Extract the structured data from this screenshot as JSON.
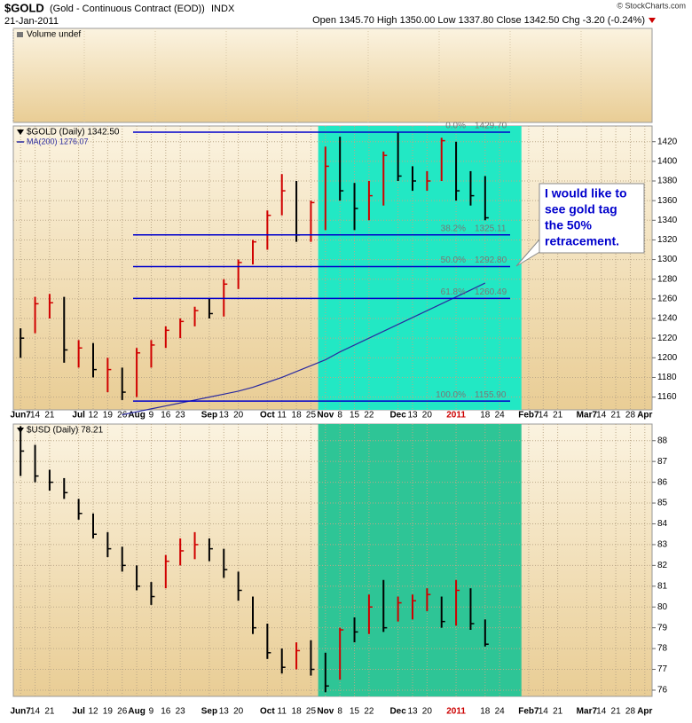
{
  "header": {
    "symbol": "$GOLD",
    "name": "(Gold - Continuous Contract (EOD))",
    "exchange": "INDX",
    "date": "21-Jan-2011",
    "quote": "Open 1345.70 High 1350.00 Low 1337.80 Close 1342.50 Chg -3.20 (-0.24%)",
    "credit": "© StockCharts.com"
  },
  "chart_data": [
    {
      "type": "volume",
      "label": "Volume undef"
    },
    {
      "type": "ohlc",
      "grid": true,
      "categories": [
        "Jun7",
        "14",
        "21",
        null,
        "Jul",
        "12",
        "19",
        "26",
        "Aug",
        "9",
        "16",
        "23",
        null,
        "Sep",
        "13",
        "20",
        null,
        "Oct",
        "11",
        "18",
        "25",
        "Nov",
        "8",
        "15",
        "22",
        null,
        "Dec",
        "13",
        "20",
        null,
        "2011",
        null,
        "18",
        "24",
        null,
        "Feb7",
        "14",
        "21",
        null,
        "Mar7",
        "14",
        "21",
        "28",
        "Apr"
      ],
      "ylim": [
        1147,
        1436
      ],
      "yticks": [
        1160,
        1180,
        1200,
        1220,
        1240,
        1260,
        1280,
        1300,
        1320,
        1340,
        1360,
        1380,
        1400,
        1420
      ],
      "highlight": {
        "from": "Nov",
        "to": "Feb7",
        "color": "#22e8c4"
      },
      "series": [
        {
          "name": "$GOLD (Daily) 1342.50",
          "color": "#000000",
          "up_color": "#d00000",
          "high": [
            1230,
            1262,
            1265,
            1262,
            1218,
            1215,
            1200,
            1190,
            1210,
            1218,
            1232,
            1240,
            1252,
            1260,
            1280,
            1300,
            1320,
            1350,
            1387,
            1380,
            1360,
            1415,
            1425,
            1378,
            1380,
            1410,
            1430,
            1395,
            1390,
            1424,
            1420,
            1390,
            1385,
            null,
            null,
            null,
            null,
            null,
            null,
            null,
            null,
            null,
            null,
            null
          ],
          "low": [
            1200,
            1225,
            1240,
            1195,
            1190,
            1180,
            1165,
            1157,
            1160,
            1190,
            1210,
            1220,
            1232,
            1240,
            1242,
            1270,
            1295,
            1310,
            1345,
            1318,
            1318,
            1330,
            1360,
            1330,
            1340,
            1355,
            1380,
            1370,
            1370,
            1380,
            1360,
            1355,
            1340,
            null,
            null,
            null,
            null,
            null,
            null,
            null,
            null,
            null,
            null,
            null
          ],
          "close": [
            1220,
            1255,
            1256,
            1208,
            1210,
            1188,
            1188,
            1165,
            1205,
            1213,
            1228,
            1237,
            1248,
            1245,
            1275,
            1297,
            1318,
            1345,
            1370,
            1325,
            1358,
            1395,
            1370,
            1352,
            1365,
            1406,
            1385,
            1380,
            1380,
            1421,
            1370,
            1365,
            1342.5,
            null,
            null,
            null,
            null,
            null,
            null,
            null,
            null,
            null,
            null,
            null
          ]
        },
        {
          "name": "MA(200) 1276.07",
          "color": "#2a2aa0",
          "values": [
            null,
            null,
            null,
            null,
            null,
            null,
            null,
            1142,
            1145,
            1148,
            1151,
            1154,
            1157,
            1160,
            1163,
            1166,
            1170,
            1175,
            1180,
            1186,
            1192,
            1198,
            1206,
            1213,
            1220,
            1227,
            1234,
            1241,
            1248,
            1255,
            1262,
            1269,
            1276.07,
            null,
            null,
            null,
            null,
            null,
            null,
            null,
            null,
            null,
            null,
            null
          ]
        }
      ],
      "fib_levels": [
        {
          "pct": "0.0%",
          "value": 1429.7,
          "value_label": "1429.70"
        },
        {
          "pct": "38.2%",
          "value": 1325.11,
          "value_label": "1325.11"
        },
        {
          "pct": "50.0%",
          "value": 1292.8,
          "value_label": "1292.80"
        },
        {
          "pct": "61.8%",
          "value": 1260.49,
          "value_label": "1260.49"
        },
        {
          "pct": "100.0%",
          "value": 1155.9,
          "value_label": "1155.90"
        }
      ],
      "fib_color": "#0000cc",
      "annotation": [
        "I would like to",
        "see gold tag",
        "the 50%",
        "retracement."
      ]
    },
    {
      "type": "ohlc",
      "grid": true,
      "categories": [
        "Jun7",
        "14",
        "21",
        null,
        "Jul",
        "12",
        "19",
        "26",
        "Aug",
        "9",
        "16",
        "23",
        null,
        "Sep",
        "13",
        "20",
        null,
        "Oct",
        "11",
        "18",
        "25",
        "Nov",
        "8",
        "15",
        "22",
        null,
        "Dec",
        "13",
        "20",
        null,
        "2011",
        null,
        "18",
        "24",
        null,
        "Feb7",
        "14",
        "21",
        null,
        "Mar7",
        "14",
        "21",
        "28",
        "Apr"
      ],
      "ylim": [
        75.7,
        88.8
      ],
      "yticks": [
        76,
        77,
        78,
        79,
        80,
        81,
        82,
        83,
        84,
        85,
        86,
        87,
        88
      ],
      "highlight": {
        "from": "Nov",
        "to": "Feb7",
        "color": "#2ec596"
      },
      "series": [
        {
          "name": "$USD (Daily) 78.21",
          "color": "#000000",
          "up_color": "#d00000",
          "high": [
            88.7,
            87.8,
            86.6,
            86.2,
            85.2,
            84.5,
            83.6,
            82.9,
            82.0,
            81.2,
            82.5,
            83.3,
            83.6,
            83.3,
            82.8,
            81.7,
            80.5,
            79.2,
            78.0,
            78.3,
            78.4,
            77.8,
            79.0,
            79.5,
            80.6,
            81.3,
            80.5,
            80.6,
            80.9,
            80.5,
            81.3,
            80.9,
            79.4,
            null,
            null,
            null,
            null,
            null,
            null,
            null,
            null,
            null,
            null,
            null
          ],
          "low": [
            86.3,
            86.0,
            85.6,
            85.2,
            84.2,
            83.3,
            82.4,
            81.7,
            80.8,
            80.1,
            80.9,
            82.0,
            82.3,
            82.2,
            81.4,
            80.3,
            78.7,
            77.5,
            76.8,
            77.0,
            76.7,
            75.9,
            76.5,
            78.3,
            78.7,
            78.8,
            79.3,
            79.4,
            79.8,
            79.0,
            79.1,
            78.9,
            78.1,
            null,
            null,
            null,
            null,
            null,
            null,
            null,
            null,
            null,
            null,
            null
          ],
          "close": [
            87.5,
            86.3,
            86.0,
            85.5,
            84.5,
            83.5,
            82.8,
            82.0,
            81.0,
            80.5,
            82.2,
            82.7,
            83.0,
            82.8,
            81.8,
            80.8,
            79.0,
            77.8,
            77.1,
            77.9,
            77.0,
            76.2,
            78.9,
            78.8,
            80.0,
            79.0,
            80.2,
            80.3,
            80.6,
            79.3,
            80.8,
            79.2,
            78.21,
            null,
            null,
            null,
            null,
            null,
            null,
            null,
            null,
            null,
            null,
            null
          ]
        }
      ]
    }
  ]
}
